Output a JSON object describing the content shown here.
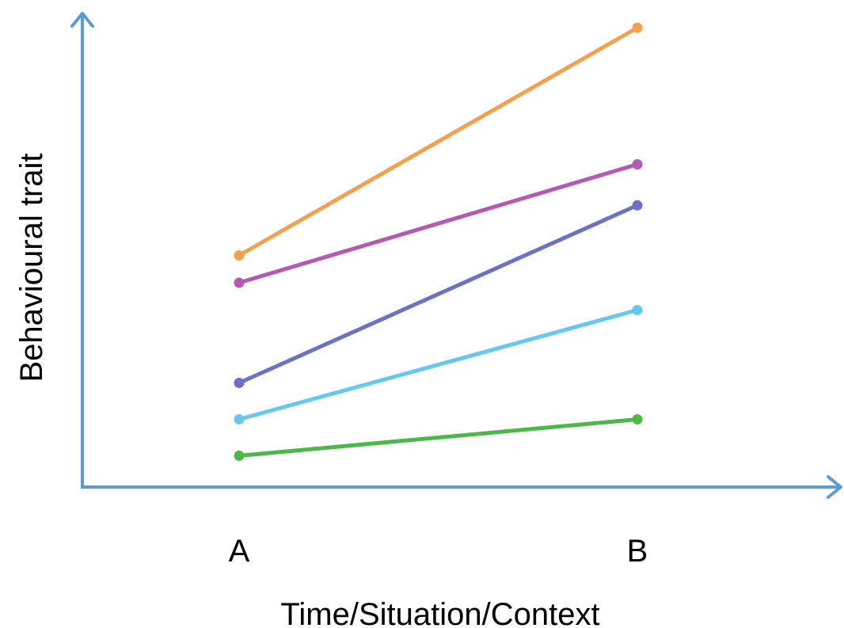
{
  "chart_data": {
    "type": "line",
    "ylabel": "Behavioural trait",
    "xlabel": "Time/Situation/Context",
    "categories": [
      "A",
      "B"
    ],
    "ylim": [
      0,
      10
    ],
    "grid": false,
    "legend": "none",
    "series": [
      {
        "color": "#F5A04E",
        "values": [
          5.0,
          10.0
        ]
      },
      {
        "color": "#B559B5",
        "values": [
          4.4,
          7.0
        ]
      },
      {
        "color": "#6A72C8",
        "values": [
          2.2,
          6.1
        ]
      },
      {
        "color": "#66C8F0",
        "values": [
          1.4,
          3.8
        ]
      },
      {
        "color": "#4CB848",
        "values": [
          0.6,
          1.4
        ]
      }
    ]
  },
  "colors": {
    "axis": "#5B9BD5"
  }
}
